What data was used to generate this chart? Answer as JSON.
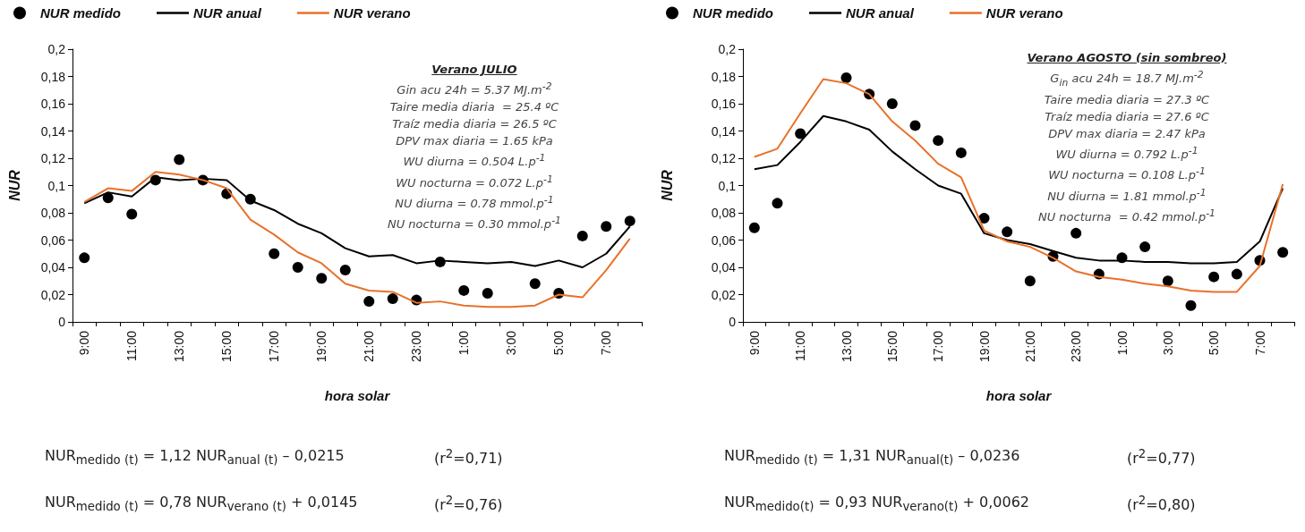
{
  "chart_data": [
    {
      "type": "line",
      "xlabel": "hora solar",
      "ylabel": "NUR",
      "legend": "top",
      "grid": false,
      "categories": [
        "9:00",
        null,
        "11:00",
        null,
        "13:00",
        null,
        "15:00",
        null,
        "17:00",
        null,
        "19:00",
        null,
        "21:00",
        null,
        "23:00",
        null,
        "1:00",
        null,
        "3:00",
        null,
        "5:00",
        null,
        "7:00",
        null
      ],
      "ylim": [
        0,
        0.2
      ],
      "yticks": [
        0,
        {
          "value": 0.02,
          "label": "0,02"
        },
        {
          "value": 0.04,
          "label": "0,04"
        },
        {
          "value": 0.06,
          "label": "0,06"
        },
        {
          "value": 0.08,
          "label": "0,08"
        },
        {
          "value": 0.1,
          "label": "0,1"
        },
        {
          "value": 0.12,
          "label": "0,12"
        },
        {
          "value": 0.14,
          "label": "0,14"
        },
        {
          "value": 0.16,
          "label": "0,16"
        },
        {
          "value": 0.18,
          "label": "0,18"
        },
        {
          "value": 0.2,
          "label": "0,2"
        }
      ],
      "series": [
        {
          "name": "NUR medido",
          "type": "scatter",
          "marker": "circle",
          "color": "#000000",
          "values": [
            0.047,
            0.091,
            0.079,
            0.104,
            0.119,
            0.104,
            0.094,
            0.09,
            0.05,
            0.04,
            0.032,
            0.038,
            0.015,
            0.017,
            0.016,
            0.044,
            0.023,
            0.021,
            null,
            0.028,
            0.021,
            0.063,
            0.07,
            0.074
          ]
        },
        {
          "name": "NUR anual",
          "color": "#000000",
          "values": [
            0.087,
            0.095,
            0.092,
            0.106,
            0.104,
            0.105,
            0.104,
            0.089,
            0.082,
            0.072,
            0.065,
            0.054,
            0.048,
            0.049,
            0.043,
            0.045,
            0.044,
            0.043,
            0.044,
            0.041,
            0.045,
            0.04,
            0.05,
            0.07
          ]
        },
        {
          "name": "NUR verano",
          "color": "#e8712a",
          "values": [
            0.088,
            0.098,
            0.096,
            0.11,
            0.108,
            0.104,
            0.098,
            0.075,
            0.064,
            0.051,
            0.043,
            0.028,
            0.023,
            0.022,
            0.014,
            0.015,
            0.012,
            0.011,
            0.011,
            0.012,
            0.02,
            0.018,
            0.038,
            0.061
          ]
        }
      ],
      "annotations": [
        "Verano JULIO",
        "Gin acu 24h = 5.37 MJ.m$^{-2}$",
        "Taire media diaria  = 25.4 ºC",
        "Traíz media diaria = 26.5 ºC",
        "DPV max diaria = 1.65 kPa",
        "WU diurna = 0.504 L.p$^{-1}$",
        "WU nocturna = 0.072 L.p$^{-1}$",
        "NU diurna = 0.78 mmol.p$^{-1}$",
        "NU nocturna = 0.30 mmol.p$^{-1}$",
        "NUR$_{medido (t)}$ = 1,12 NUR$_{anual (t)}$ – 0,0215",
        "(r$^{2}$=0,71)",
        "NUR$_{medido (t)}$ = 0,78 NUR$_{verano (t)}$ + 0,0145",
        "(r$^{2}$=0,76)"
      ]
    },
    {
      "type": "line",
      "xlabel": "hora solar",
      "ylabel": "NUR",
      "legend": "top",
      "grid": false,
      "categories": [
        "9:00",
        null,
        "11:00",
        null,
        "13:00",
        null,
        "15:00",
        null,
        "17:00",
        null,
        "19:00",
        null,
        "21:00",
        null,
        "23:00",
        null,
        "1:00",
        null,
        "3:00",
        null,
        "5:00",
        null,
        "7:00",
        null
      ],
      "ylim": [
        0,
        0.2
      ],
      "yticks": [
        0,
        {
          "value": 0.02,
          "label": "0,02"
        },
        {
          "value": 0.04,
          "label": "0,04"
        },
        {
          "value": 0.06,
          "label": "0,06"
        },
        {
          "value": 0.08,
          "label": "0,08"
        },
        {
          "value": 0.1,
          "label": "0,1"
        },
        {
          "value": 0.12,
          "label": "0,12"
        },
        {
          "value": 0.14,
          "label": "0,14"
        },
        {
          "value": 0.16,
          "label": "0,16"
        },
        {
          "value": 0.18,
          "label": "0,18"
        },
        {
          "value": 0.2,
          "label": "0,2"
        }
      ],
      "series": [
        {
          "name": "NUR medido",
          "type": "scatter",
          "marker": "circle",
          "color": "#000000",
          "values": [
            0.069,
            0.087,
            0.138,
            null,
            0.179,
            0.167,
            0.16,
            0.144,
            0.133,
            0.124,
            0.076,
            0.066,
            0.03,
            0.048,
            0.065,
            0.035,
            0.047,
            0.055,
            0.03,
            0.012,
            0.033,
            0.035,
            0.045,
            0.051
          ]
        },
        {
          "name": "NUR anual",
          "color": "#000000",
          "values": [
            0.112,
            0.115,
            0.132,
            0.151,
            0.147,
            0.141,
            0.125,
            0.112,
            0.1,
            0.094,
            0.065,
            0.06,
            0.057,
            0.052,
            0.047,
            0.045,
            0.045,
            0.044,
            0.044,
            0.043,
            0.043,
            0.044,
            0.059,
            0.098
          ]
        },
        {
          "name": "NUR verano",
          "color": "#e8712a",
          "values": [
            0.121,
            0.127,
            0.153,
            0.178,
            0.175,
            0.167,
            0.147,
            0.133,
            0.116,
            0.106,
            0.067,
            0.059,
            0.055,
            0.047,
            0.037,
            0.033,
            0.031,
            0.028,
            0.026,
            0.023,
            0.022,
            0.022,
            0.041,
            0.101
          ]
        }
      ],
      "annotations": [
        "Verano AGOSTO (sin sombreo)",
        "G$_{in}$ acu 24h = 18.7 MJ.m$^{-2}$",
        "Taire media diaria = 27.3 ºC",
        "Traíz media diaria = 27.6 ºC",
        "DPV max diaria = 2.47 kPa",
        "WU diurna = 0.792 L.p$^{-1}$",
        "WU nocturna = 0.108 L.p$^{-1}$",
        "NU diurna = 1.81 mmol.p$^{-1}$",
        "NU nocturna  = 0.42 mmol.p$^{-1}$",
        "NUR$_{medido (t)}$ = 1,31 NUR$_{anual(t)}$ – 0,0236",
        "(r$^{2}$=0,77)",
        "NUR$_{medido(t)}$ = 0,93 NUR$_{verano(t)}$ + 0,0062",
        "(r$^{2}$=0,80)"
      ]
    }
  ]
}
